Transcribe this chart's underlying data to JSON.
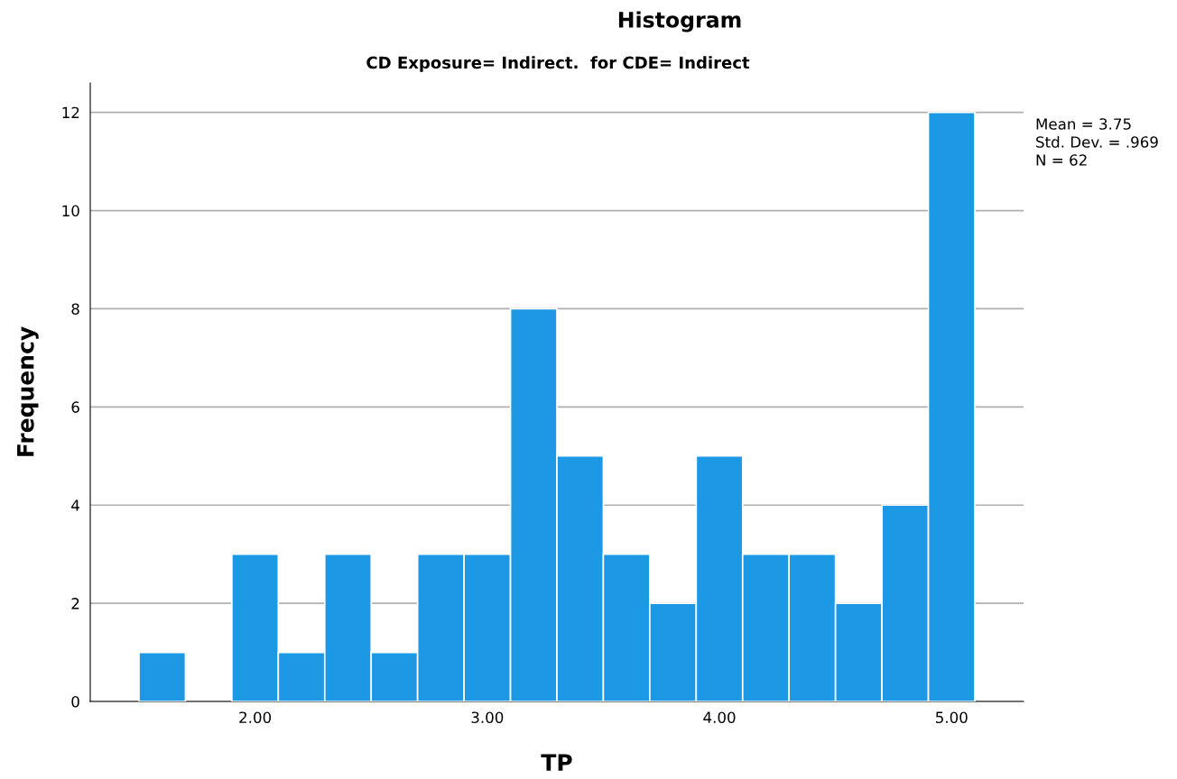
{
  "chart_data": {
    "type": "histogram",
    "title": "Histogram",
    "subtitle": "CD Exposure= Indirect.  for CDE= Indirect",
    "xlabel": "TP",
    "ylabel": "Frequency",
    "bins": [
      1.5,
      1.7,
      1.9,
      2.1,
      2.3,
      2.5,
      2.7,
      2.9,
      3.1,
      3.3,
      3.5,
      3.7,
      3.9,
      4.1,
      4.3,
      4.5,
      4.7,
      4.9,
      5.1
    ],
    "values": [
      1,
      0,
      3,
      1,
      3,
      1,
      3,
      3,
      8,
      5,
      3,
      2,
      5,
      3,
      3,
      2,
      4,
      12
    ],
    "color": "#1d98e5",
    "xlim": [
      1.29,
      5.31
    ],
    "xticks": [
      {
        "value": 2,
        "label": "2.00"
      },
      {
        "value": 3,
        "label": "3.00"
      },
      {
        "value": 4,
        "label": "4.00"
      },
      {
        "value": 5,
        "label": "5.00"
      }
    ],
    "ylim": [
      0,
      12.6
    ],
    "yticks": [
      0,
      2,
      4,
      6,
      8,
      10,
      12
    ],
    "grid": "y",
    "annotations": [
      "Mean = 3.75",
      "Std. Dev. = .969",
      "N = 62"
    ]
  }
}
